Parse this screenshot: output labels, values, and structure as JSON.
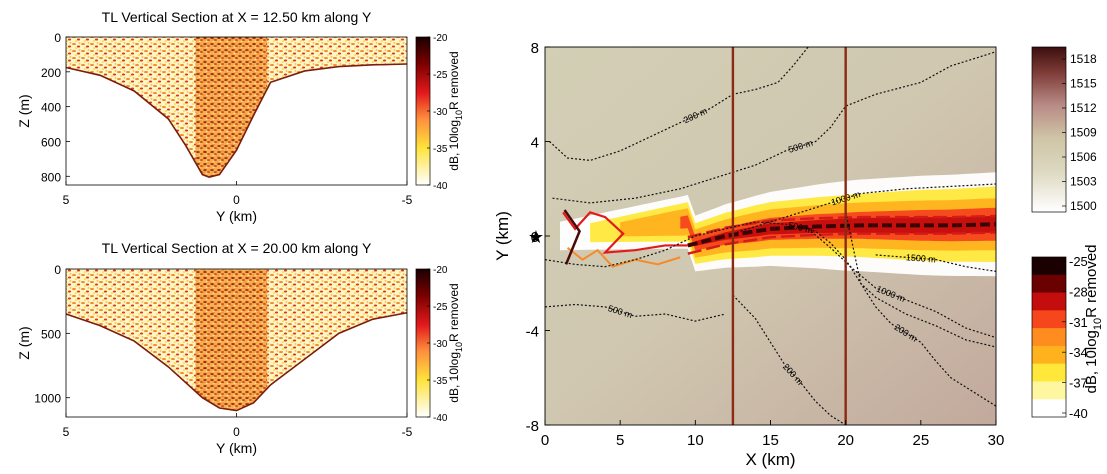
{
  "chart_data": [
    {
      "type": "heatmap",
      "title": "TL Vertical Section at X =  12.50 km along Y",
      "xlabel": "Y (km)",
      "ylabel": "Z (m)",
      "xlim": [
        5,
        -5
      ],
      "ylim": [
        0,
        850
      ],
      "xticks": [
        "5",
        "0",
        "-5"
      ],
      "yticks": [
        "0",
        "200",
        "400",
        "600",
        "800"
      ],
      "colorbar": {
        "label_main": "dB, 10log",
        "label_sub": "10",
        "label_end": "R removed",
        "range": [
          -40,
          -20
        ],
        "ticks": [
          "-20",
          "-25",
          "-30",
          "-35",
          "-40"
        ]
      },
      "seafloor_depth": [
        {
          "y": 5,
          "z": 175
        },
        {
          "y": 4,
          "z": 220
        },
        {
          "y": 3,
          "z": 310
        },
        {
          "y": 2,
          "z": 470
        },
        {
          "y": 1.5,
          "z": 620
        },
        {
          "y": 1,
          "z": 790
        },
        {
          "y": 0.8,
          "z": 805
        },
        {
          "y": 0.5,
          "z": 790
        },
        {
          "y": 0,
          "z": 650
        },
        {
          "y": -0.5,
          "z": 450
        },
        {
          "y": -1,
          "z": 260
        },
        {
          "y": -2,
          "z": 195
        },
        {
          "y": -3,
          "z": 170
        },
        {
          "y": -4,
          "z": 160
        },
        {
          "y": -5,
          "z": 155
        }
      ]
    },
    {
      "type": "heatmap",
      "title": "TL Vertical Section at X =  20.00 km along Y",
      "xlabel": "Y (km)",
      "ylabel": "Z (m)",
      "xlim": [
        5,
        -5
      ],
      "ylim": [
        0,
        1150
      ],
      "xticks": [
        "5",
        "0",
        "-5"
      ],
      "yticks": [
        "0",
        "500",
        "1000"
      ],
      "colorbar": {
        "label_main": "dB, 10log",
        "label_sub": "10",
        "label_end": "R removed",
        "range": [
          -40,
          -20
        ],
        "ticks": [
          "-20",
          "-25",
          "-30",
          "-35",
          "-40"
        ]
      },
      "seafloor_depth": [
        {
          "y": 5,
          "z": 350
        },
        {
          "y": 4,
          "z": 440
        },
        {
          "y": 3,
          "z": 560
        },
        {
          "y": 2,
          "z": 760
        },
        {
          "y": 1,
          "z": 1000
        },
        {
          "y": 0.5,
          "z": 1080
        },
        {
          "y": 0,
          "z": 1100
        },
        {
          "y": -0.5,
          "z": 1040
        },
        {
          "y": -1,
          "z": 900
        },
        {
          "y": -2,
          "z": 700
        },
        {
          "y": -3,
          "z": 500
        },
        {
          "y": -4,
          "z": 390
        },
        {
          "y": -5,
          "z": 340
        }
      ]
    },
    {
      "type": "heatmap",
      "xlabel": "X (km)",
      "ylabel": "Y (km)",
      "xlim": [
        0,
        30
      ],
      "ylim": [
        -8,
        8
      ],
      "xticks": [
        "0",
        "5",
        "10",
        "15",
        "20",
        "25",
        "30"
      ],
      "yticks": [
        "8",
        "4",
        "0",
        "-4",
        "-8"
      ],
      "source_marker": "★",
      "section_lines_x": [
        12.5,
        20
      ],
      "sound_speed_colorbar": {
        "range": [
          1500,
          1518
        ],
        "ticks": [
          "1518",
          "1515",
          "1512",
          "1509",
          "1506",
          "1503",
          "1500"
        ]
      },
      "tl_colorbar": {
        "label_main": "dB, 10log",
        "label_sub": "10",
        "label_end": "R removed",
        "range": [
          -40,
          -25
        ],
        "ticks": [
          "-25",
          "-28",
          "-31",
          "-34",
          "-37",
          "-40"
        ]
      },
      "bathymetry_contours": [
        {
          "label": "200 m",
          "points": [
            [
              0.3,
              4.0
            ],
            [
              1.5,
              3.3
            ],
            [
              3,
              3.2
            ],
            [
              5,
              3.6
            ],
            [
              7,
              4.2
            ],
            [
              9,
              4.8
            ],
            [
              11,
              5.4
            ],
            [
              12.5,
              6.0
            ],
            [
              14,
              6.2
            ],
            [
              15.5,
              6.5
            ],
            [
              16.5,
              7.2
            ],
            [
              17.5,
              8.0
            ]
          ]
        },
        {
          "label": "500 m",
          "points": [
            [
              0,
              -3.0
            ],
            [
              2,
              -2.9
            ],
            [
              4,
              -3.0
            ],
            [
              6,
              -3.4
            ],
            [
              8,
              -3.3
            ],
            [
              10,
              -3.6
            ],
            [
              12,
              -3.3
            ]
          ]
        },
        {
          "label": "500 m",
          "points": [
            [
              0.5,
              1.6
            ],
            [
              3,
              1.4
            ],
            [
              6,
              1.6
            ],
            [
              9,
              2.0
            ],
            [
              12,
              2.6
            ],
            [
              14,
              3.0
            ],
            [
              16,
              3.6
            ],
            [
              18,
              4.0
            ],
            [
              19,
              4.6
            ],
            [
              20,
              5.5
            ],
            [
              22,
              6.0
            ],
            [
              25,
              6.5
            ],
            [
              27,
              7.2
            ],
            [
              29,
              7.6
            ],
            [
              30,
              7.8
            ]
          ]
        },
        {
          "label": "500 m",
          "points": [
            [
              0,
              -1.0
            ],
            [
              2,
              -1.2
            ],
            [
              4,
              -1.3
            ],
            [
              6,
              -1.0
            ],
            [
              8,
              -0.6
            ],
            [
              10,
              0.0
            ],
            [
              12,
              0.3
            ],
            [
              14,
              0.6
            ],
            [
              16,
              0.5
            ],
            [
              18,
              0.2
            ],
            [
              19,
              -0.3
            ],
            [
              20,
              -1.0
            ],
            [
              21,
              -2.0
            ],
            [
              22,
              -2.6
            ],
            [
              24,
              -3.3
            ],
            [
              26,
              -3.8
            ],
            [
              28,
              -4.4
            ],
            [
              30,
              -4.7
            ]
          ]
        },
        {
          "label": "1000 m",
          "points": [
            [
              12.5,
              0.1
            ],
            [
              15,
              0.6
            ],
            [
              17,
              1.0
            ],
            [
              19,
              1.4
            ],
            [
              21,
              1.8
            ],
            [
              24,
              2.0
            ],
            [
              27,
              2.1
            ],
            [
              30,
              2.2
            ]
          ]
        },
        {
          "label": "1000 m",
          "points": [
            [
              17.5,
              0.3
            ],
            [
              19,
              -0.5
            ],
            [
              20.5,
              -1.4
            ],
            [
              22,
              -2.2
            ],
            [
              24,
              -2.7
            ],
            [
              26,
              -3.2
            ],
            [
              28,
              -3.9
            ],
            [
              30,
              -4.3
            ]
          ]
        },
        {
          "label": "1500 m",
          "points": [
            [
              22,
              -0.8
            ],
            [
              24,
              -0.9
            ],
            [
              26,
              -1.0
            ],
            [
              28,
              -1.3
            ],
            [
              30,
              -1.5
            ]
          ]
        },
        {
          "label": "200 m",
          "points": [
            [
              20,
              1.0
            ],
            [
              20.5,
              -0.5
            ],
            [
              21,
              -2.0
            ],
            [
              22,
              -3.0
            ],
            [
              23,
              -3.7
            ],
            [
              25,
              -4.5
            ],
            [
              26,
              -5.3
            ],
            [
              27,
              -6.0
            ],
            [
              28,
              -6.4
            ],
            [
              29,
              -6.8
            ],
            [
              30,
              -7.2
            ]
          ]
        },
        {
          "label": "200 m",
          "points": [
            [
              12.5,
              -2.5
            ],
            [
              14,
              -3.5
            ],
            [
              15,
              -4.5
            ],
            [
              16,
              -5.5
            ],
            [
              17,
              -6.2
            ],
            [
              18,
              -7.0
            ],
            [
              19,
              -7.6
            ],
            [
              20,
              -8.0
            ]
          ]
        }
      ],
      "beam_core": [
        [
          9.5,
          -0.4
        ],
        [
          12,
          0
        ],
        [
          15,
          0.3
        ],
        [
          18,
          0.4
        ],
        [
          21,
          0.45
        ],
        [
          24,
          0.45
        ],
        [
          27,
          0.45
        ],
        [
          30,
          0.5
        ]
      ],
      "beam_halfwidth_dB": [
        {
          "level": -40,
          "width": [
            [
              1,
              0.6
            ],
            [
              9,
              1.1
            ],
            [
              14,
              1.5
            ],
            [
              20,
              1.9
            ],
            [
              25,
              2.1
            ],
            [
              30,
              2.2
            ]
          ]
        },
        {
          "level": -37,
          "width": [
            [
              3,
              0.4
            ],
            [
              9,
              0.8
            ],
            [
              14,
              1.1
            ],
            [
              20,
              1.3
            ],
            [
              25,
              1.5
            ],
            [
              30,
              1.6
            ]
          ]
        },
        {
          "level": -34,
          "width": [
            [
              5,
              0.3
            ],
            [
              9,
              0.55
            ],
            [
              14,
              0.8
            ],
            [
              20,
              0.95
            ],
            [
              25,
              1.05
            ],
            [
              30,
              1.1
            ]
          ]
        },
        {
          "level": -31,
          "width": [
            [
              9,
              0.25
            ],
            [
              14,
              0.45
            ],
            [
              20,
              0.55
            ],
            [
              25,
              0.65
            ],
            [
              30,
              0.7
            ]
          ]
        },
        {
          "level": -28,
          "width": [
            [
              10,
              0.1
            ],
            [
              14,
              0.22
            ],
            [
              20,
              0.3
            ],
            [
              25,
              0.35
            ],
            [
              30,
              0.35
            ]
          ]
        }
      ]
    }
  ]
}
